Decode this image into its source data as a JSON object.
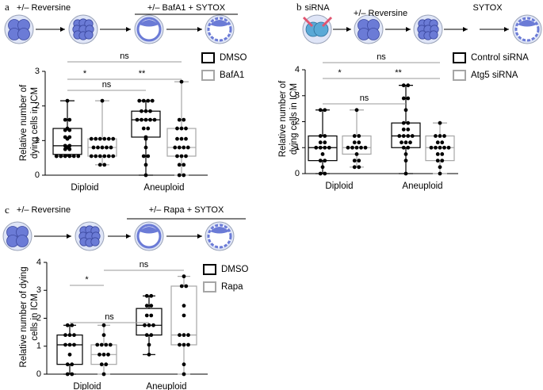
{
  "chart_data": [
    {
      "type": "box",
      "panel": "a",
      "protocol": [
        "+/– Reversine",
        "+/– BafA1 + SYTOX"
      ],
      "ylabel": [
        "Relative number of",
        "dying cells in ICM"
      ],
      "categories": [
        "Diploid",
        "Aneuploid"
      ],
      "point_color": "#000000",
      "series": [
        {
          "name": "DMSO",
          "color": "#000000",
          "values": [
            {
              "min": 0.55,
              "q1": 0.6,
              "median": 0.85,
              "q3": 1.35,
              "max": 2.15,
              "points": [
                0.55,
                0.55,
                0.55,
                0.55,
                0.55,
                0.55,
                0.55,
                0.55,
                0.75,
                0.75,
                0.8,
                0.85,
                0.85,
                1.05,
                1.1,
                1.1,
                1.3,
                1.3,
                1.35,
                1.6,
                1.6,
                2.15
              ]
            },
            {
              "min": 0,
              "q1": 1.1,
              "median": 1.6,
              "q3": 1.85,
              "max": 2.15,
              "points": [
                0,
                0.3,
                0.55,
                0.55,
                0.8,
                1.05,
                1.1,
                1.35,
                1.35,
                1.6,
                1.6,
                1.6,
                1.6,
                1.6,
                1.85,
                1.85,
                1.85,
                2.15,
                2.15,
                2.15,
                2.15
              ]
            }
          ]
        },
        {
          "name": "BafA1",
          "color": "#a6a6a6",
          "values": [
            {
              "min": 0.3,
              "q1": 0.55,
              "median": 0.8,
              "q3": 1.05,
              "max": 2.15,
              "points": [
                0.3,
                0.3,
                0.55,
                0.55,
                0.55,
                0.55,
                0.55,
                0.55,
                0.8,
                0.8,
                0.8,
                0.8,
                0.8,
                1.05,
                1.05,
                1.05,
                1.05,
                1.05,
                1.05,
                2.15
              ]
            },
            {
              "min": 0,
              "q1": 0.55,
              "median": 0.8,
              "q3": 1.35,
              "max": 2.7,
              "points": [
                0,
                0,
                0.3,
                0.3,
                0.55,
                0.55,
                0.55,
                0.8,
                0.8,
                0.8,
                0.8,
                1.05,
                1.05,
                1.05,
                1.35,
                1.35,
                1.35,
                1.6,
                1.6,
                2.7
              ]
            }
          ]
        }
      ],
      "ylim": [
        0,
        3
      ],
      "yticks": [
        0,
        1,
        2,
        3
      ],
      "significance": {
        "overall": "ns",
        "control": "*",
        "diploid": "ns",
        "treated": "**"
      }
    },
    {
      "type": "box",
      "panel": "b",
      "protocol": [
        "siRNA",
        "+/– Reversine",
        "SYTOX"
      ],
      "ylabel": [
        "Relative number of",
        "dying cells in ICM"
      ],
      "categories": [
        "Diploid",
        "Aneuploid"
      ],
      "point_color": "#000000",
      "series": [
        {
          "name": "Control siRNA",
          "color": "#000000",
          "values": [
            {
              "min": 0,
              "q1": 0.5,
              "median": 1.0,
              "q3": 1.45,
              "max": 2.45,
              "points": [
                0,
                0,
                0.25,
                0.5,
                0.5,
                0.75,
                1,
                1,
                1,
                1,
                1.2,
                1.2,
                1.45,
                1.45,
                2.45,
                2.45
              ]
            },
            {
              "min": 0,
              "q1": 1.0,
              "median": 1.45,
              "q3": 1.95,
              "max": 3.4,
              "points": [
                0,
                0.5,
                0.75,
                1,
                1,
                1.2,
                1.2,
                1.2,
                1.45,
                1.45,
                1.45,
                1.45,
                1.7,
                1.7,
                1.95,
                1.95,
                2.45,
                2.9,
                2.9,
                3.4,
                3.4
              ]
            }
          ]
        },
        {
          "name": "Atg5 siRNA",
          "color": "#a6a6a6",
          "values": [
            {
              "min": 0.25,
              "q1": 0.75,
              "median": 1.0,
              "q3": 1.45,
              "max": 2.45,
              "points": [
                0.25,
                0.25,
                0.5,
                0.5,
                0.75,
                1,
                1,
                1,
                1,
                1,
                1.2,
                1.2,
                1.45,
                1.45,
                2.45
              ]
            },
            {
              "min": 0,
              "q1": 0.5,
              "median": 1.0,
              "q3": 1.45,
              "max": 1.95,
              "points": [
                0,
                0.25,
                0.5,
                0.5,
                0.75,
                0.75,
                1,
                1,
                1,
                1,
                1,
                1.2,
                1.2,
                1.45,
                1.45,
                1.45,
                1.95
              ]
            }
          ]
        }
      ],
      "ylim": [
        0,
        4
      ],
      "yticks": [
        0,
        1,
        2,
        3,
        4
      ],
      "significance": {
        "overall": "ns",
        "control": "*",
        "diploid": "ns",
        "treated": "**"
      }
    },
    {
      "type": "box",
      "panel": "c",
      "protocol": [
        "+/– Reversine",
        "+/– Rapa + SYTOX"
      ],
      "ylabel": [
        "Relative number of dying",
        "cells in ICM"
      ],
      "categories": [
        "Diploid",
        "Aneuploid"
      ],
      "point_color": "#000000",
      "series": [
        {
          "name": "DMSO",
          "color": "#000000",
          "values": [
            {
              "min": 0,
              "q1": 0.35,
              "median": 1.05,
              "q3": 1.4,
              "max": 1.75,
              "points": [
                0,
                0,
                0.35,
                0.35,
                0.7,
                1.05,
                1.05,
                1.05,
                1.4,
                1.4,
                1.4,
                1.75,
                1.75
              ]
            },
            {
              "min": 0.7,
              "q1": 1.4,
              "median": 1.75,
              "q3": 2.35,
              "max": 2.8,
              "points": [
                0.7,
                1.05,
                1.4,
                1.4,
                1.75,
                1.75,
                1.75,
                2.1,
                2.1,
                2.45,
                2.45,
                2.8,
                2.8
              ]
            }
          ]
        },
        {
          "name": "Rapa",
          "color": "#a6a6a6",
          "values": [
            {
              "min": 0,
              "q1": 0.35,
              "median": 0.7,
              "q3": 1.05,
              "max": 1.75,
              "points": [
                0,
                0.35,
                0.35,
                0.7,
                0.7,
                0.7,
                1.05,
                1.05,
                1.05,
                1.05,
                1.4,
                1.75
              ]
            },
            {
              "min": 0,
              "q1": 1.05,
              "median": 1.4,
              "q3": 3.15,
              "max": 3.5,
              "points": [
                0,
                0.35,
                1.05,
                1.05,
                1.05,
                1.4,
                1.4,
                1.4,
                2.1,
                2.45,
                3.15,
                3.15,
                3.5
              ]
            }
          ]
        }
      ],
      "ylim": [
        0,
        4
      ],
      "yticks": [
        0,
        1,
        2,
        3,
        4
      ],
      "significance": {
        "control": "*",
        "diploid": "ns",
        "treated": "ns"
      }
    }
  ]
}
